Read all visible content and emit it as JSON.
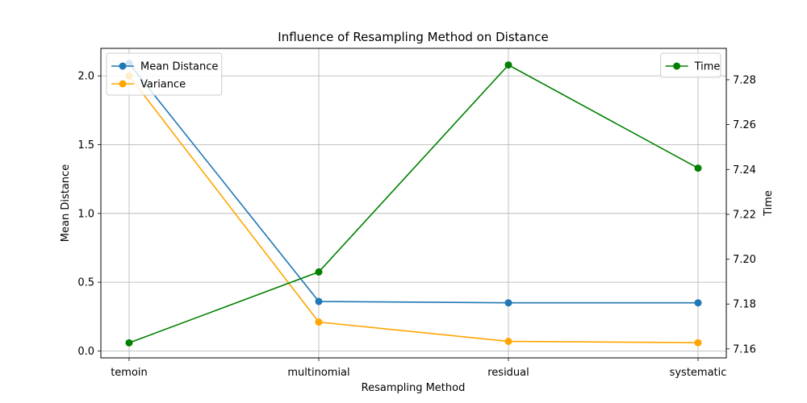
{
  "chart_data": {
    "type": "line",
    "title": "Influence of Resampling Method on Distance",
    "xlabel": "Resampling Method",
    "ylabel_left": "Mean Distance",
    "ylabel_right": "Time",
    "categories": [
      "temoin",
      "multinomial",
      "residual",
      "systematic"
    ],
    "left_axis": {
      "ylim": [
        -0.05,
        2.2
      ],
      "ticks": [
        0.0,
        0.5,
        1.0,
        1.5,
        2.0
      ],
      "tick_labels": [
        "0.0",
        "0.5",
        "1.0",
        "1.5",
        "2.0"
      ]
    },
    "right_axis": {
      "ylim": [
        7.156,
        7.294
      ],
      "ticks": [
        7.16,
        7.18,
        7.2,
        7.22,
        7.24,
        7.26,
        7.28
      ],
      "tick_labels": [
        "7.16",
        "7.18",
        "7.20",
        "7.22",
        "7.24",
        "7.26",
        "7.28"
      ]
    },
    "series": [
      {
        "name": "Mean Distance",
        "axis": "left",
        "color": "#1f77b4",
        "values": [
          2.09,
          0.36,
          0.35,
          0.35
        ]
      },
      {
        "name": "Variance",
        "axis": "left",
        "color": "#ffa500",
        "values": [
          2.0,
          0.21,
          0.07,
          0.06
        ]
      },
      {
        "name": "Time",
        "axis": "right",
        "color": "#008000",
        "values": [
          7.1627,
          7.1943,
          7.2866,
          7.2406
        ]
      }
    ],
    "grid": true,
    "legend_left_placement": "upper-left",
    "legend_right_placement": "upper-right"
  }
}
